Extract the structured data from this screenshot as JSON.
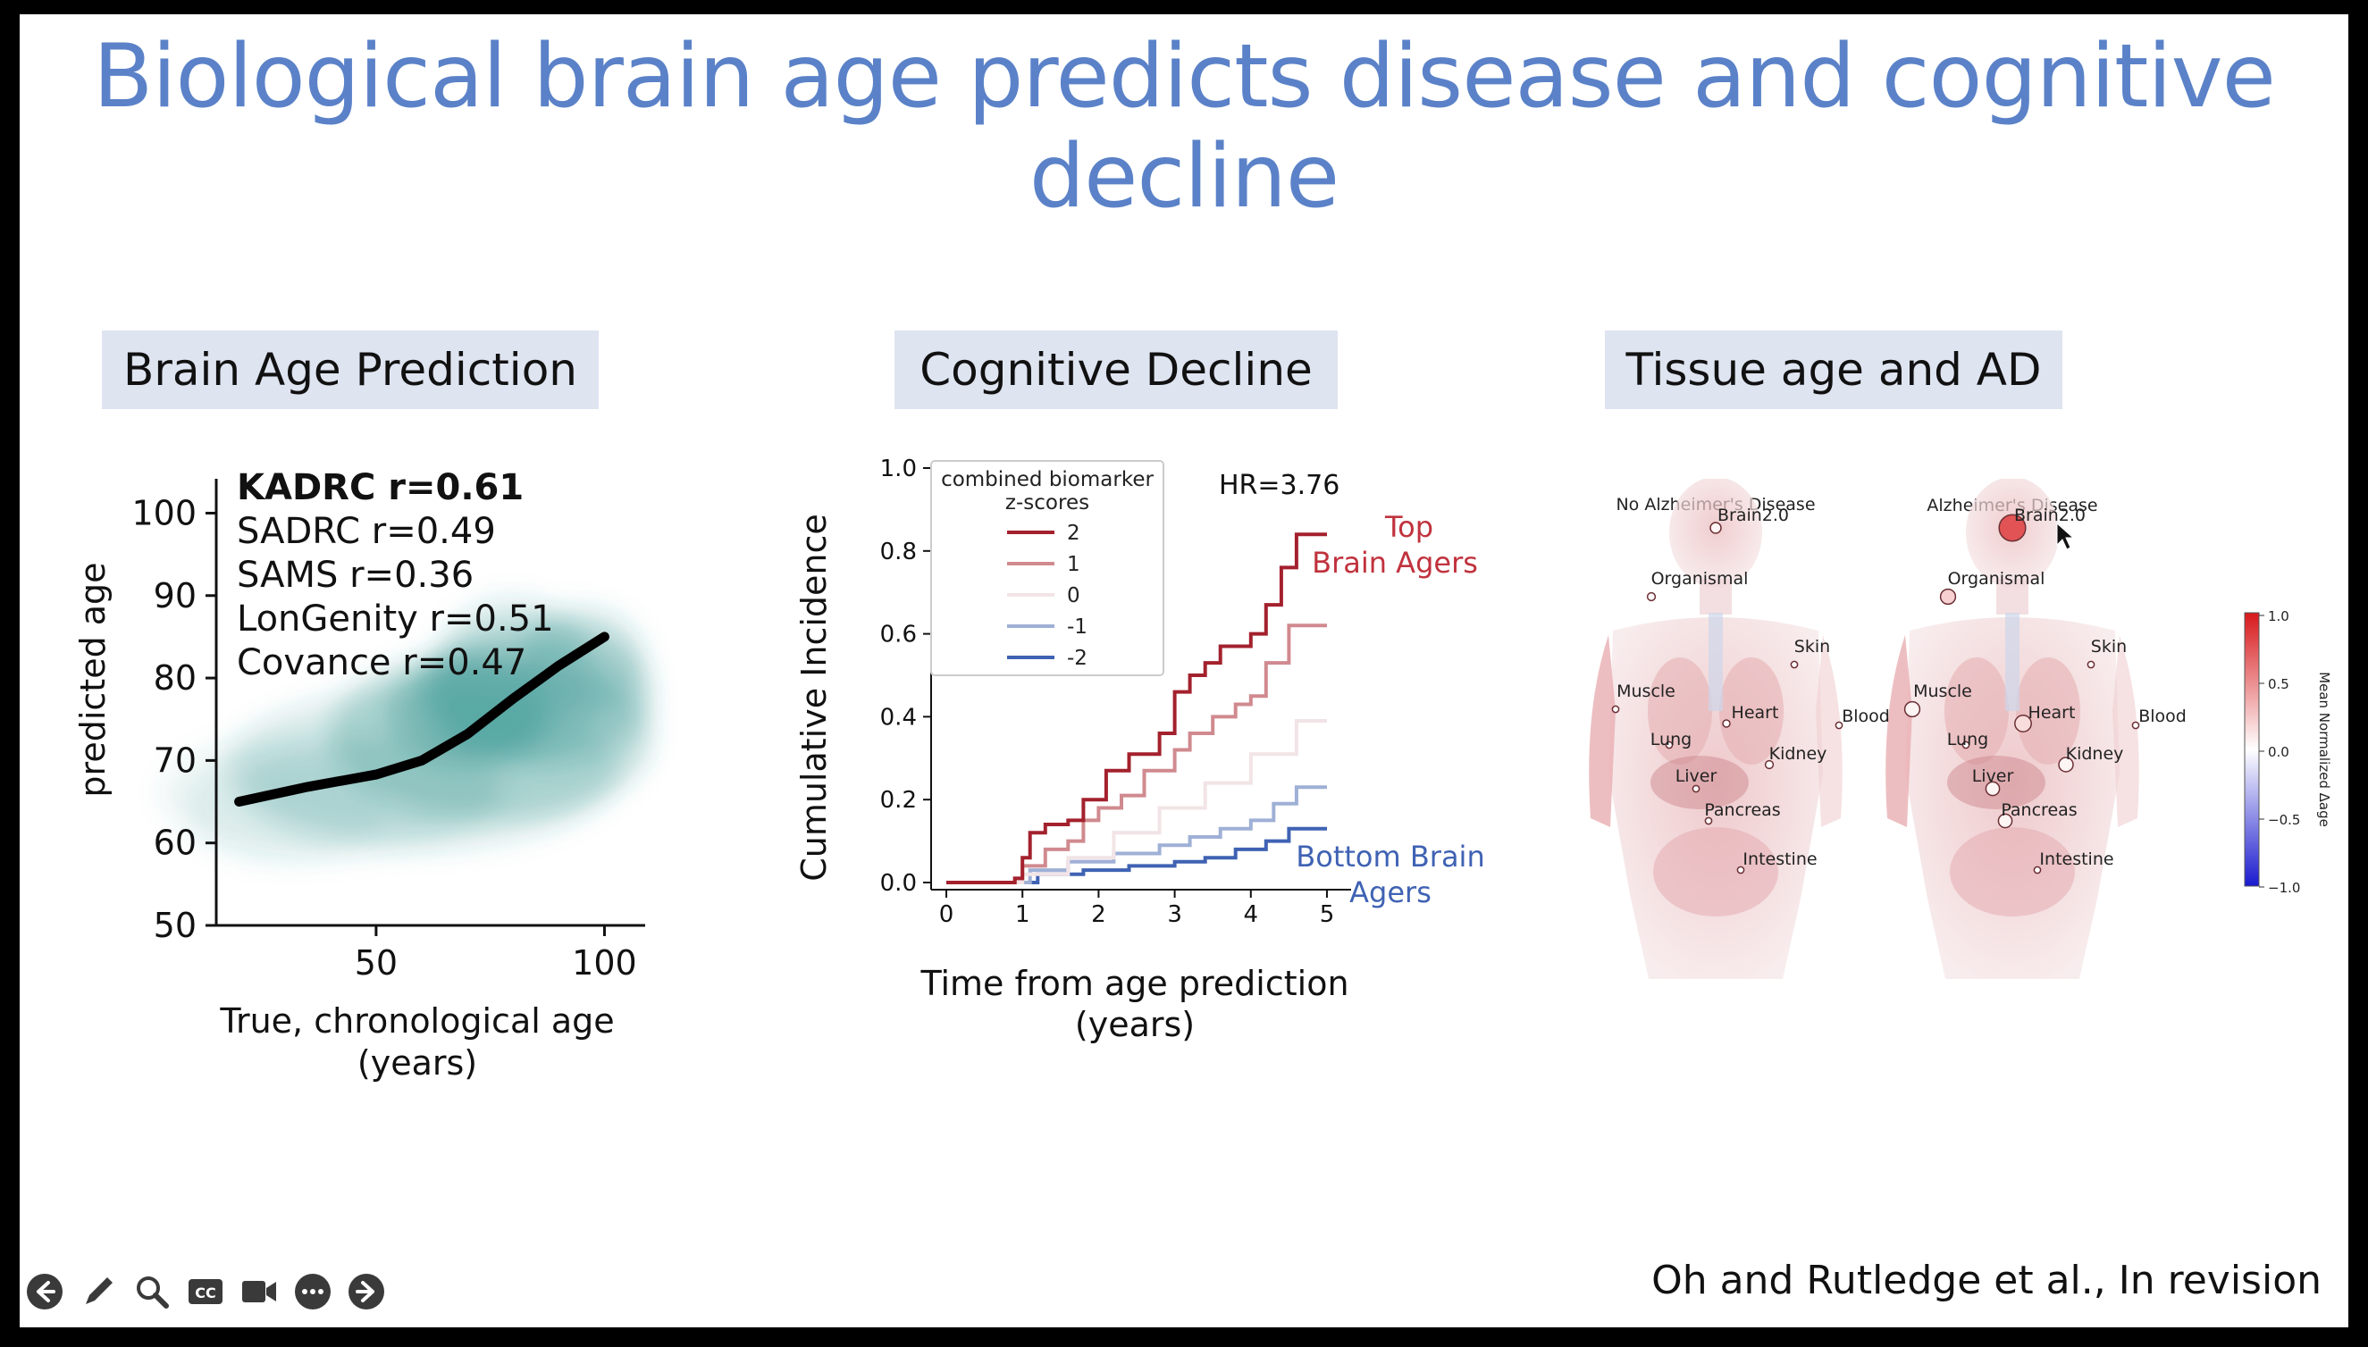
{
  "slide": {
    "title_line1": "Biological brain age predicts disease and cognitive",
    "title_line2": "decline",
    "citation": "Oh and Rutledge et al., In revision"
  },
  "panels": {
    "brain_age": {
      "header": "Brain Age Prediction",
      "annotations": [
        "KADRC r=0.61",
        "SADRC r=0.49",
        "SAMS r=0.36",
        "LonGenity r=0.51",
        "Covance r=0.47"
      ]
    },
    "cognitive": {
      "header": "Cognitive Decline",
      "hr_label": "HR=3.76",
      "top_label_1": "Top",
      "top_label_2": "Brain Agers",
      "bottom_label_1": "Bottom Brain",
      "bottom_label_2": "Agers"
    },
    "tissue": {
      "header": "Tissue age and AD",
      "left_title": "No Alzheimer's Disease",
      "right_title": "Alzheimer's Disease",
      "organs": [
        "Brain2.0",
        "Organismal",
        "Skin",
        "Muscle",
        "Heart",
        "Blood",
        "Lung",
        "Kidney",
        "Liver",
        "Pancreas",
        "Intestine"
      ],
      "colorbar_label": "Mean Normalized Δage",
      "colorbar_ticks": [
        "1.0",
        "0.5",
        "0.0",
        "−0.5",
        "−1.0"
      ],
      "colors": {
        "high": "#d7191c",
        "mid": "#ffffff",
        "low": "#1a1acf"
      }
    }
  },
  "chart_data": [
    {
      "type": "line",
      "title": "",
      "xlabel_line1": "True, chronological age",
      "xlabel_line2": "(years)",
      "ylabel": "predicted age",
      "xlim": [
        15,
        105
      ],
      "ylim": [
        50,
        102
      ],
      "xticks": [
        "50",
        "100"
      ],
      "xtick_values": [
        50,
        100
      ],
      "yticks": [
        "50",
        "60",
        "70",
        "80",
        "90",
        "100"
      ],
      "ytick_values": [
        50,
        60,
        70,
        80,
        90,
        100
      ],
      "series": [
        {
          "x": [
            20,
            35,
            50,
            60,
            70,
            80,
            90,
            100
          ],
          "y": [
            65,
            66.8,
            68.3,
            70,
            73.2,
            77.5,
            81.5,
            85
          ]
        }
      ],
      "density_color": "#2a8f8a",
      "line_color": "#000000"
    },
    {
      "type": "line",
      "title": "",
      "xlabel_line1": "Time from age prediction",
      "xlabel_line2": "(years)",
      "ylabel": "Cumulative Incidence",
      "xlim": [
        -0.2,
        5.2
      ],
      "ylim": [
        0,
        1.0
      ],
      "xticks": [
        "0",
        "1",
        "2",
        "3",
        "4",
        "5"
      ],
      "xtick_values": [
        0,
        1,
        2,
        3,
        4,
        5
      ],
      "yticks": [
        "0.0",
        "0.2",
        "0.4",
        "0.6",
        "0.8",
        "1.0"
      ],
      "ytick_values": [
        0,
        0.2,
        0.4,
        0.6,
        0.8,
        1.0
      ],
      "legend_title_line1": "combined biomarker",
      "legend_title_line2": "z-scores",
      "legend_position": "upper-left",
      "series": [
        {
          "name": "2",
          "color": "#a3212d",
          "x": [
            0,
            0.6,
            0.9,
            1.0,
            1.1,
            1.3,
            1.6,
            1.8,
            2.1,
            2.4,
            2.8,
            3.0,
            3.2,
            3.4,
            3.6,
            4.0,
            4.2,
            4.4,
            4.6,
            5.0
          ],
          "y": [
            0,
            0,
            0.01,
            0.06,
            0.12,
            0.14,
            0.15,
            0.2,
            0.27,
            0.31,
            0.36,
            0.46,
            0.5,
            0.53,
            0.57,
            0.6,
            0.67,
            0.76,
            0.84,
            0.84
          ]
        },
        {
          "name": "1",
          "color": "#d08a8f",
          "x": [
            0,
            0.6,
            0.9,
            1.0,
            1.3,
            1.6,
            1.8,
            2.0,
            2.3,
            2.6,
            3.0,
            3.2,
            3.5,
            3.8,
            4.0,
            4.2,
            4.5,
            5.0
          ],
          "y": [
            0,
            0,
            0.01,
            0.04,
            0.08,
            0.1,
            0.15,
            0.18,
            0.21,
            0.27,
            0.32,
            0.36,
            0.4,
            0.43,
            0.45,
            0.53,
            0.62,
            0.62
          ]
        },
        {
          "name": "0",
          "color": "#f2e4e6",
          "x": [
            0,
            1.0,
            1.6,
            2.2,
            2.8,
            3.4,
            4.0,
            4.6,
            5.0
          ],
          "y": [
            0,
            0.02,
            0.06,
            0.12,
            0.18,
            0.24,
            0.31,
            0.39,
            0.39
          ]
        },
        {
          "name": "-1",
          "color": "#9fb0d6",
          "x": [
            0,
            0.9,
            1.1,
            1.6,
            2.2,
            2.8,
            3.2,
            3.6,
            4.0,
            4.3,
            4.6,
            5.0
          ],
          "y": [
            0,
            0,
            0.03,
            0.05,
            0.07,
            0.09,
            0.11,
            0.13,
            0.15,
            0.19,
            0.23,
            0.23
          ]
        },
        {
          "name": "-2",
          "color": "#3f62b3",
          "x": [
            0,
            0.9,
            1.2,
            1.8,
            2.4,
            3.0,
            3.4,
            3.8,
            4.2,
            4.5,
            5.0
          ],
          "y": [
            0,
            0,
            0.02,
            0.03,
            0.04,
            0.05,
            0.06,
            0.08,
            0.1,
            0.13,
            0.13
          ]
        }
      ]
    }
  ],
  "tissue_bubbles": {
    "no_ad": [
      {
        "organ": "Brain2.0",
        "value": 0.05,
        "size": 1
      },
      {
        "organ": "Organismal",
        "value": 0.02,
        "size": 0.6
      },
      {
        "organ": "Skin",
        "value": 0.0,
        "size": 0.4
      },
      {
        "organ": "Muscle",
        "value": 0.0,
        "size": 0.4
      },
      {
        "organ": "Heart",
        "value": 0.0,
        "size": 0.5
      },
      {
        "organ": "Blood",
        "value": 0.0,
        "size": 0.4
      },
      {
        "organ": "Lung",
        "value": 0.0,
        "size": 0.4
      },
      {
        "organ": "Kidney",
        "value": 0.0,
        "size": 0.6
      },
      {
        "organ": "Liver",
        "value": 0.0,
        "size": 0.4
      },
      {
        "organ": "Pancreas",
        "value": 0.0,
        "size": 0.4
      },
      {
        "organ": "Intestine",
        "value": 0.0,
        "size": 0.4
      }
    ],
    "ad": [
      {
        "organ": "Brain2.0",
        "value": 0.75,
        "size": 3.2
      },
      {
        "organ": "Organismal",
        "value": 0.2,
        "size": 1.6
      },
      {
        "organ": "Skin",
        "value": 0.0,
        "size": 0.4
      },
      {
        "organ": "Muscle",
        "value": 0.05,
        "size": 1.6
      },
      {
        "organ": "Heart",
        "value": 0.15,
        "size": 1.8
      },
      {
        "organ": "Blood",
        "value": 0.0,
        "size": 0.4
      },
      {
        "organ": "Lung",
        "value": 0.0,
        "size": 0.4
      },
      {
        "organ": "Kidney",
        "value": 0.05,
        "size": 1.5
      },
      {
        "organ": "Liver",
        "value": 0.05,
        "size": 1.4
      },
      {
        "organ": "Pancreas",
        "value": 0.05,
        "size": 1.4
      },
      {
        "organ": "Intestine",
        "value": 0.0,
        "size": 0.4
      }
    ]
  },
  "toolbar": {
    "icons": [
      "back-arrow-icon",
      "pen-icon",
      "zoom-icon",
      "captions-icon",
      "camera-icon",
      "more-icon",
      "forward-arrow-icon"
    ]
  }
}
